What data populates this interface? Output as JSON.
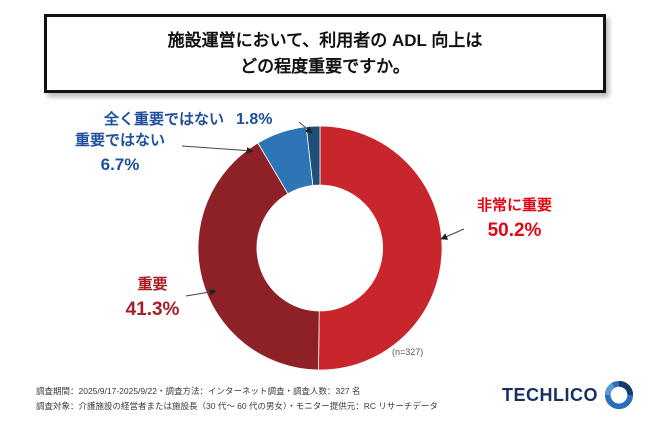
{
  "title": {
    "line1": "施設運営において、利用者の ADL 向上は",
    "line2": "どの程度重要ですか。"
  },
  "chart_data": {
    "type": "pie",
    "subtype": "donut",
    "direction": "clockwise",
    "start_angle_deg": 0,
    "categories": [
      "非常に重要",
      "重要",
      "重要ではない",
      "全く重要ではない"
    ],
    "values": [
      50.2,
      41.3,
      6.7,
      1.8
    ],
    "display_values": [
      "50.2%",
      "41.3%",
      "6.7%",
      "1.8%"
    ],
    "colors": [
      "#c9252d",
      "#8e2128",
      "#2e75b6",
      "#1f4e79"
    ],
    "label_colors": [
      "#e00613",
      "#a81e27",
      "#1f4e9c",
      "#1f4e9c"
    ],
    "note": "(n=327)"
  },
  "footer": {
    "line1": "調査期間：2025/9/17-2025/9/22・調査方法：インターネット調査・調査人数：327 名",
    "line2": "調査対象：介護施設の経営者または施設長（30 代〜 60 代の男女）・モニター提供元：RC リサーチデータ"
  },
  "logo": {
    "text": "TECHLICO"
  }
}
